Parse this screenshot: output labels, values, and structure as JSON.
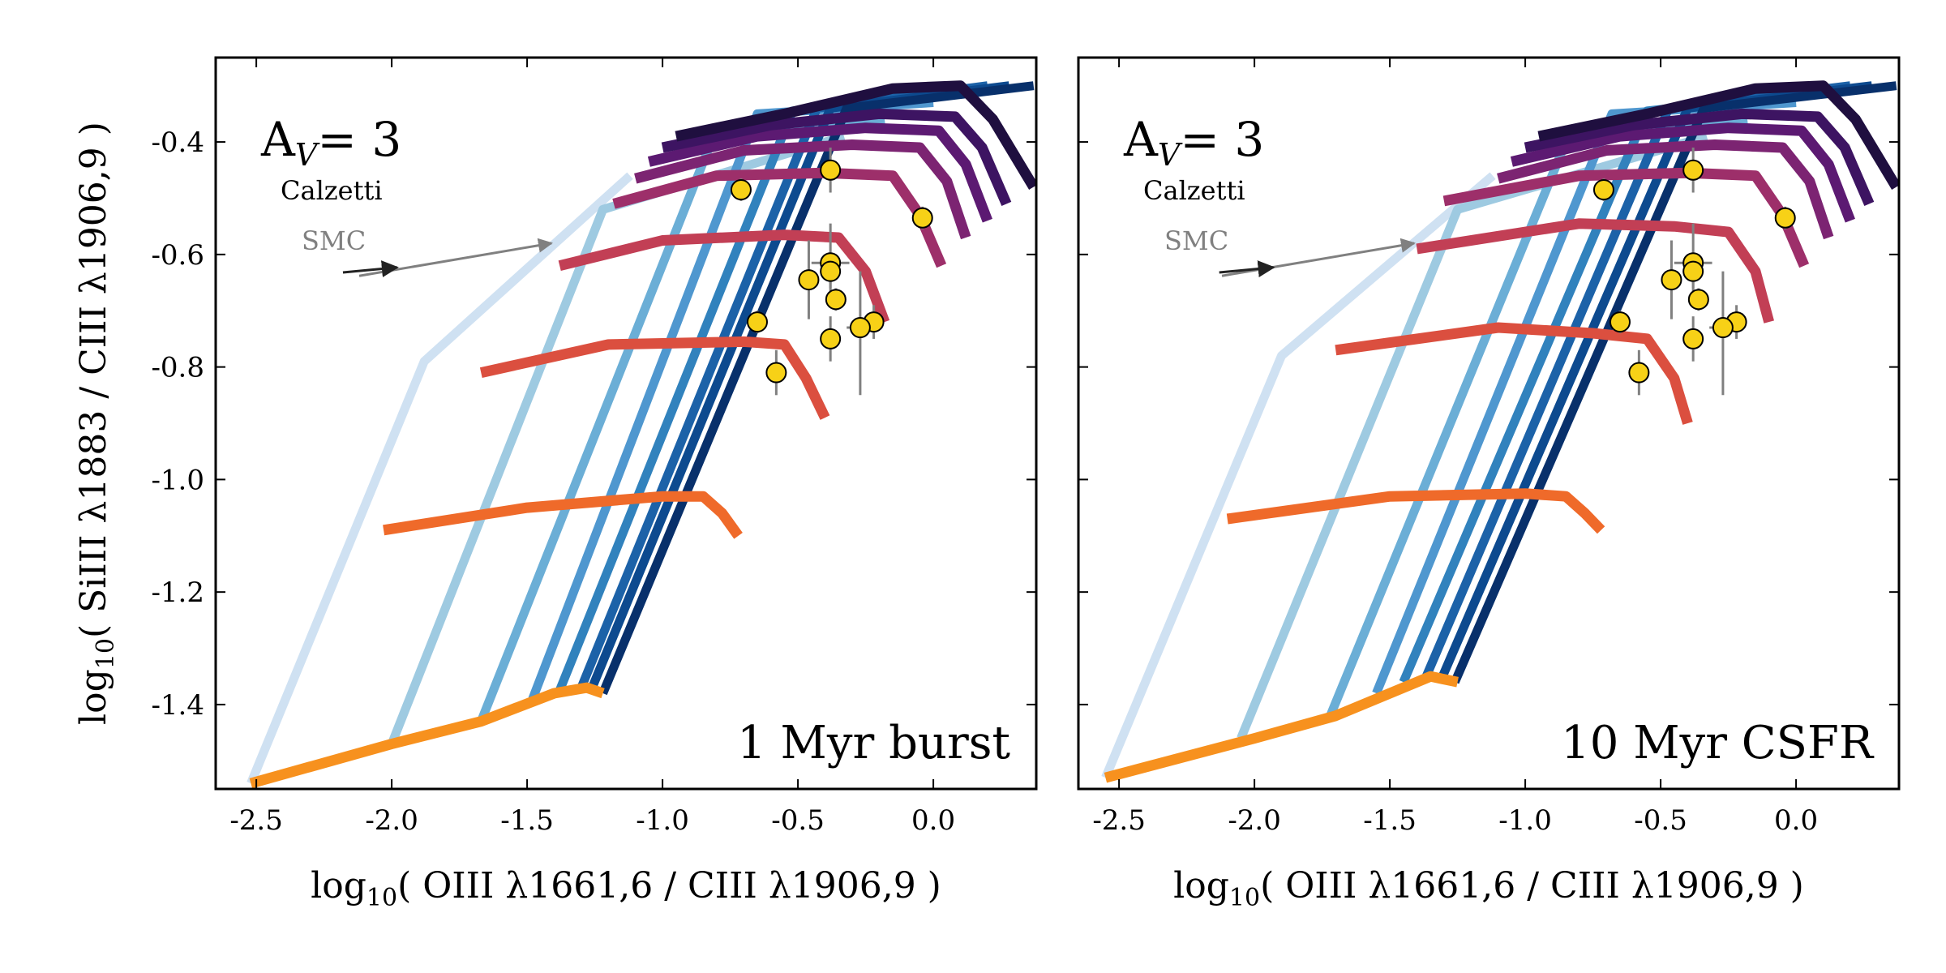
{
  "figure": {
    "ylabel_prefix": "log",
    "ylabel_sub": "10",
    "ylabel_rest": "( SiIII λ1883 / CIII λ1906,9 )"
  },
  "chart_data": [
    {
      "type": "line",
      "panel_label": "1 Myr burst",
      "av_base": "A",
      "av_sub": "V",
      "av_value": "= 3",
      "calzetti_label": "Calzetti",
      "smc_label": "SMC",
      "xlabel_prefix": "log",
      "xlabel_sub": "10",
      "xlabel_rest": "( OIII λ1661,6 / CIII λ1906,9 )",
      "xlim": [
        -2.65,
        0.38
      ],
      "ylim": [
        -1.55,
        -0.25
      ],
      "xticks": [
        -2.5,
        -2.0,
        -1.5,
        -1.0,
        -0.5,
        0.0
      ],
      "xtick_labels": [
        "-2.5",
        "-2.0",
        "-1.5",
        "-1.0",
        "-0.5",
        "0.0"
      ],
      "yticks": [
        -1.4,
        -1.2,
        -1.0,
        -0.8,
        -0.6,
        -0.4
      ],
      "ytick_labels": [
        "-1.4",
        "-1.2",
        "-1.0",
        "-0.8",
        "-0.6",
        "-0.4"
      ],
      "ionization_series": [
        {
          "color": "#f7911e",
          "x": [
            -2.52,
            -2.0,
            -1.67,
            -1.4,
            -1.28,
            -1.22
          ],
          "y": [
            -1.54,
            -1.47,
            -1.43,
            -1.38,
            -1.37,
            -1.38
          ]
        },
        {
          "color": "#ef6a2a",
          "x": [
            -2.03,
            -1.5,
            -1.0,
            -0.85,
            -0.78,
            -0.72
          ],
          "y": [
            -1.09,
            -1.05,
            -1.03,
            -1.03,
            -1.06,
            -1.1
          ]
        },
        {
          "color": "#db4f3f",
          "x": [
            -1.67,
            -1.2,
            -0.7,
            -0.55,
            -0.47,
            -0.4
          ],
          "y": [
            -0.81,
            -0.76,
            -0.755,
            -0.76,
            -0.82,
            -0.89
          ]
        },
        {
          "color": "#c23f55",
          "x": [
            -1.38,
            -1.0,
            -0.55,
            -0.35,
            -0.25,
            -0.18
          ],
          "y": [
            -0.62,
            -0.575,
            -0.565,
            -0.57,
            -0.63,
            -0.72
          ]
        },
        {
          "color": "#9d2f6a",
          "x": [
            -1.18,
            -0.8,
            -0.4,
            -0.15,
            -0.05,
            0.03
          ],
          "y": [
            -0.51,
            -0.46,
            -0.455,
            -0.46,
            -0.53,
            -0.62
          ]
        },
        {
          "color": "#7c2472",
          "x": [
            -1.1,
            -0.7,
            -0.3,
            -0.05,
            0.05,
            0.12
          ],
          "y": [
            -0.465,
            -0.415,
            -0.405,
            -0.41,
            -0.47,
            -0.57
          ]
        },
        {
          "color": "#5c1a72",
          "x": [
            -1.05,
            -0.65,
            -0.25,
            0.02,
            0.12,
            0.2
          ],
          "y": [
            -0.435,
            -0.39,
            -0.375,
            -0.38,
            -0.44,
            -0.54
          ]
        },
        {
          "color": "#3d1462",
          "x": [
            -1.0,
            -0.6,
            -0.2,
            0.08,
            0.18,
            0.27
          ],
          "y": [
            -0.41,
            -0.37,
            -0.35,
            -0.355,
            -0.41,
            -0.51
          ]
        },
        {
          "color": "#1f0f3f",
          "x": [
            -0.95,
            -0.55,
            -0.15,
            0.1,
            0.22,
            0.37
          ],
          "y": [
            -0.39,
            -0.35,
            -0.305,
            -0.3,
            -0.36,
            -0.48
          ]
        }
      ],
      "metallicity_series": [
        {
          "color": "#cfe1f2",
          "x": [
            -2.52,
            -1.88,
            -1.12
          ],
          "y": [
            -1.54,
            -0.79,
            -0.46
          ]
        },
        {
          "color": "#9ecae1",
          "x": [
            -2.0,
            -1.22,
            -0.33
          ],
          "y": [
            -1.47,
            -0.52,
            -0.39
          ]
        },
        {
          "color": "#6baed6",
          "x": [
            -1.67,
            -0.82,
            -0.18
          ],
          "y": [
            -1.43,
            -0.4,
            -0.36
          ]
        },
        {
          "color": "#4f97cf",
          "x": [
            -1.48,
            -0.65,
            0.0
          ],
          "y": [
            -1.39,
            -0.35,
            -0.33
          ]
        },
        {
          "color": "#3182bd",
          "x": [
            -1.38,
            -0.52,
            0.1
          ],
          "y": [
            -1.375,
            -0.345,
            -0.31
          ]
        },
        {
          "color": "#1c62a8",
          "x": [
            -1.3,
            -0.43,
            0.2
          ],
          "y": [
            -1.37,
            -0.34,
            -0.3
          ]
        },
        {
          "color": "#0d4a8f",
          "x": [
            -1.26,
            -0.38,
            0.28
          ],
          "y": [
            -1.37,
            -0.34,
            -0.3
          ]
        },
        {
          "color": "#08306b",
          "x": [
            -1.22,
            -0.32,
            0.37
          ],
          "y": [
            -1.38,
            -0.34,
            -0.3
          ]
        }
      ],
      "observations": [
        {
          "x": -0.71,
          "y": -0.485,
          "yerr": [
            0.02,
            0.02
          ],
          "xerr": [
            0,
            0
          ]
        },
        {
          "x": -0.38,
          "y": -0.45,
          "yerr": [
            0.04,
            0.04
          ],
          "xerr": [
            0,
            0
          ]
        },
        {
          "x": -0.04,
          "y": -0.535,
          "yerr": [
            0.02,
            0.02
          ],
          "xerr": [
            0,
            0
          ]
        },
        {
          "x": -0.38,
          "y": -0.615,
          "yerr": [
            0.07,
            0.07
          ],
          "xerr": [
            0.07,
            0.07
          ]
        },
        {
          "x": -0.38,
          "y": -0.63,
          "yerr": [
            0.03,
            0.03
          ],
          "xerr": [
            0.03,
            0.03
          ]
        },
        {
          "x": -0.46,
          "y": -0.645,
          "yerr": [
            0.07,
            0.07
          ],
          "xerr": [
            0.03,
            0.03
          ]
        },
        {
          "x": -0.36,
          "y": -0.68,
          "yerr": [
            0.02,
            0.02
          ],
          "xerr": [
            0,
            0
          ]
        },
        {
          "x": -0.65,
          "y": -0.72,
          "yerr": [
            0.02,
            0.02
          ],
          "xerr": [
            0,
            0
          ]
        },
        {
          "x": -0.38,
          "y": -0.75,
          "yerr": [
            0.04,
            0.04
          ],
          "xerr": [
            0,
            0
          ]
        },
        {
          "x": -0.22,
          "y": -0.72,
          "yerr": [
            0.03,
            0.03
          ],
          "xerr": [
            0,
            0
          ]
        },
        {
          "x": -0.27,
          "y": -0.73,
          "yerr": [
            0.12,
            0.1
          ],
          "xerr": [
            0.05,
            0.05
          ]
        },
        {
          "x": -0.58,
          "y": -0.81,
          "yerr": [
            0.04,
            0.04
          ],
          "xerr": [
            0,
            0
          ]
        }
      ],
      "calzetti_vector": {
        "x": [
          -2.18,
          -1.98
        ],
        "y": [
          -0.632,
          -0.623
        ]
      },
      "smc_vector": {
        "x": [
          -2.12,
          -1.41
        ],
        "y": [
          -0.638,
          -0.58
        ]
      }
    },
    {
      "type": "line",
      "panel_label": "10 Myr CSFR",
      "av_base": "A",
      "av_sub": "V",
      "av_value": "= 3",
      "calzetti_label": "Calzetti",
      "smc_label": "SMC",
      "xlabel_prefix": "log",
      "xlabel_sub": "10",
      "xlabel_rest": "( OIII λ1661,6 / CIII λ1906,9 )",
      "xlim": [
        -2.65,
        0.38
      ],
      "ylim": [
        -1.55,
        -0.25
      ],
      "xticks": [
        -2.5,
        -2.0,
        -1.5,
        -1.0,
        -0.5,
        0.0
      ],
      "xtick_labels": [
        "-2.5",
        "-2.0",
        "-1.5",
        "-1.0",
        "-0.5",
        "0.0"
      ],
      "yticks": [
        -1.4,
        -1.2,
        -1.0,
        -0.8,
        -0.6,
        -0.4
      ],
      "ytick_labels": [
        "-1.4",
        "-1.2",
        "-1.0",
        "-0.8",
        "-0.6",
        "-0.4"
      ],
      "ionization_series": [
        {
          "color": "#f7911e",
          "x": [
            -2.55,
            -2.0,
            -1.7,
            -1.45,
            -1.35,
            -1.25
          ],
          "y": [
            -1.53,
            -1.46,
            -1.42,
            -1.37,
            -1.35,
            -1.36
          ]
        },
        {
          "color": "#ef6a2a",
          "x": [
            -2.1,
            -1.5,
            -1.0,
            -0.85,
            -0.78,
            -0.72
          ],
          "y": [
            -1.07,
            -1.03,
            -1.025,
            -1.03,
            -1.06,
            -1.09
          ]
        },
        {
          "color": "#db4f3f",
          "x": [
            -1.7,
            -1.1,
            -0.75,
            -0.55,
            -0.45,
            -0.4
          ],
          "y": [
            -0.77,
            -0.73,
            -0.74,
            -0.75,
            -0.82,
            -0.9
          ]
        },
        {
          "color": "#c23f55",
          "x": [
            -1.4,
            -0.8,
            -0.45,
            -0.25,
            -0.15,
            -0.1
          ],
          "y": [
            -0.59,
            -0.545,
            -0.55,
            -0.56,
            -0.63,
            -0.72
          ]
        },
        {
          "color": "#9d2f6a",
          "x": [
            -1.3,
            -0.8,
            -0.4,
            -0.15,
            -0.05,
            0.03
          ],
          "y": [
            -0.505,
            -0.46,
            -0.455,
            -0.46,
            -0.53,
            -0.62
          ]
        },
        {
          "color": "#7c2472",
          "x": [
            -1.1,
            -0.7,
            -0.3,
            -0.05,
            0.05,
            0.12
          ],
          "y": [
            -0.465,
            -0.415,
            -0.405,
            -0.41,
            -0.47,
            -0.57
          ]
        },
        {
          "color": "#5c1a72",
          "x": [
            -1.05,
            -0.65,
            -0.25,
            0.02,
            0.12,
            0.2
          ],
          "y": [
            -0.435,
            -0.39,
            -0.375,
            -0.38,
            -0.44,
            -0.54
          ]
        },
        {
          "color": "#3d1462",
          "x": [
            -1.0,
            -0.6,
            -0.2,
            0.08,
            0.18,
            0.27
          ],
          "y": [
            -0.41,
            -0.37,
            -0.35,
            -0.355,
            -0.41,
            -0.51
          ]
        },
        {
          "color": "#1f0f3f",
          "x": [
            -0.95,
            -0.55,
            -0.15,
            0.1,
            0.22,
            0.37
          ],
          "y": [
            -0.39,
            -0.35,
            -0.305,
            -0.3,
            -0.36,
            -0.48
          ]
        }
      ],
      "metallicity_series": [
        {
          "color": "#cfe1f2",
          "x": [
            -2.55,
            -1.9,
            -1.12
          ],
          "y": [
            -1.53,
            -0.78,
            -0.46
          ]
        },
        {
          "color": "#9ecae1",
          "x": [
            -2.05,
            -1.25,
            -0.33
          ],
          "y": [
            -1.46,
            -0.52,
            -0.39
          ]
        },
        {
          "color": "#6baed6",
          "x": [
            -1.72,
            -0.85,
            -0.18
          ],
          "y": [
            -1.42,
            -0.4,
            -0.36
          ]
        },
        {
          "color": "#4f97cf",
          "x": [
            -1.55,
            -0.68,
            0.0
          ],
          "y": [
            -1.38,
            -0.35,
            -0.33
          ]
        },
        {
          "color": "#3182bd",
          "x": [
            -1.45,
            -0.55,
            0.1
          ],
          "y": [
            -1.36,
            -0.345,
            -0.31
          ]
        },
        {
          "color": "#1c62a8",
          "x": [
            -1.37,
            -0.47,
            0.2
          ],
          "y": [
            -1.355,
            -0.34,
            -0.3
          ]
        },
        {
          "color": "#0d4a8f",
          "x": [
            -1.31,
            -0.4,
            0.28
          ],
          "y": [
            -1.355,
            -0.34,
            -0.3
          ]
        },
        {
          "color": "#08306b",
          "x": [
            -1.26,
            -0.34,
            0.37
          ],
          "y": [
            -1.36,
            -0.34,
            -0.3
          ]
        }
      ],
      "observations": [
        {
          "x": -0.71,
          "y": -0.485,
          "yerr": [
            0.02,
            0.02
          ],
          "xerr": [
            0,
            0
          ]
        },
        {
          "x": -0.38,
          "y": -0.45,
          "yerr": [
            0.04,
            0.04
          ],
          "xerr": [
            0,
            0
          ]
        },
        {
          "x": -0.04,
          "y": -0.535,
          "yerr": [
            0.02,
            0.02
          ],
          "xerr": [
            0,
            0
          ]
        },
        {
          "x": -0.38,
          "y": -0.615,
          "yerr": [
            0.07,
            0.07
          ],
          "xerr": [
            0.07,
            0.07
          ]
        },
        {
          "x": -0.38,
          "y": -0.63,
          "yerr": [
            0.03,
            0.03
          ],
          "xerr": [
            0.03,
            0.03
          ]
        },
        {
          "x": -0.46,
          "y": -0.645,
          "yerr": [
            0.07,
            0.07
          ],
          "xerr": [
            0.03,
            0.03
          ]
        },
        {
          "x": -0.36,
          "y": -0.68,
          "yerr": [
            0.02,
            0.02
          ],
          "xerr": [
            0,
            0
          ]
        },
        {
          "x": -0.65,
          "y": -0.72,
          "yerr": [
            0.02,
            0.02
          ],
          "xerr": [
            0,
            0
          ]
        },
        {
          "x": -0.38,
          "y": -0.75,
          "yerr": [
            0.04,
            0.04
          ],
          "xerr": [
            0,
            0
          ]
        },
        {
          "x": -0.22,
          "y": -0.72,
          "yerr": [
            0.03,
            0.03
          ],
          "xerr": [
            0,
            0
          ]
        },
        {
          "x": -0.27,
          "y": -0.73,
          "yerr": [
            0.12,
            0.1
          ],
          "xerr": [
            0.05,
            0.05
          ]
        },
        {
          "x": -0.58,
          "y": -0.81,
          "yerr": [
            0.04,
            0.04
          ],
          "xerr": [
            0,
            0
          ]
        }
      ],
      "calzetti_vector": {
        "x": [
          -2.13,
          -1.93
        ],
        "y": [
          -0.632,
          -0.623
        ]
      },
      "smc_vector": {
        "x": [
          -2.12,
          -1.41
        ],
        "y": [
          -0.638,
          -0.58
        ]
      }
    }
  ]
}
